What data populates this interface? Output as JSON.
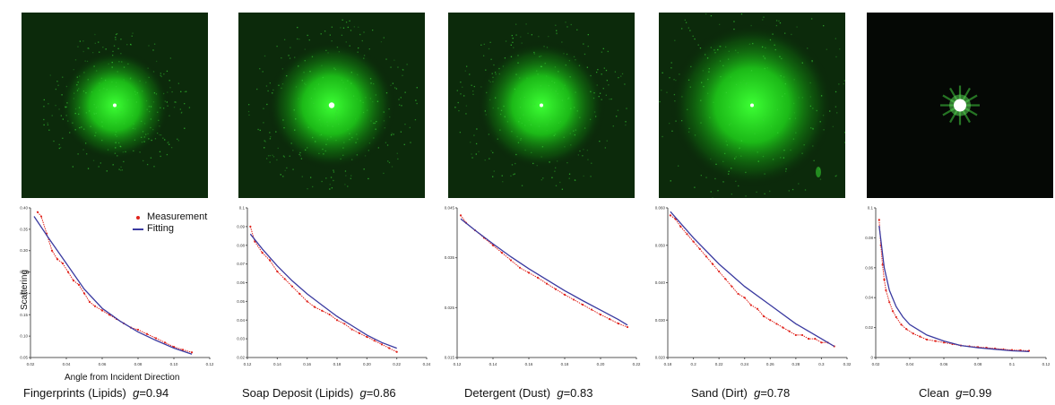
{
  "panels": [
    {
      "id": "fingerprints",
      "caption": "Fingerprints (Lipids)",
      "g_symbol": "g",
      "g_value": "=0.94",
      "photo": {
        "glow": "medium",
        "core": "small"
      },
      "chart_data": {
        "type": "scatter",
        "xlabel": "Angle from Incident Direction",
        "ylabel": "Scattering",
        "xlim": [
          0.02,
          0.12
        ],
        "ylim": [
          0.05,
          0.4
        ],
        "x_ticks": [
          "0.02",
          "0.04",
          "0.06",
          "0.08",
          "0.10",
          "0.12"
        ],
        "y_ticks": [
          "0.05",
          "0.10",
          "0.15",
          "0.20",
          "0.25",
          "0.30",
          "0.35",
          "0.40"
        ],
        "series": [
          {
            "name": "Measurement",
            "kind": "points",
            "x": [
              0.024,
              0.026,
              0.029,
              0.032,
              0.035,
              0.038,
              0.041,
              0.044,
              0.047,
              0.05,
              0.053,
              0.056,
              0.06,
              0.064,
              0.068,
              0.072,
              0.076,
              0.08,
              0.085,
              0.09,
              0.095,
              0.1,
              0.105,
              0.11
            ],
            "y": [
              0.39,
              0.38,
              0.34,
              0.3,
              0.28,
              0.27,
              0.25,
              0.23,
              0.22,
              0.2,
              0.18,
              0.17,
              0.16,
              0.15,
              0.14,
              0.13,
              0.12,
              0.115,
              0.105,
              0.095,
              0.085,
              0.075,
              0.068,
              0.062
            ]
          },
          {
            "name": "Fitting",
            "kind": "line",
            "x": [
              0.022,
              0.03,
              0.04,
              0.05,
              0.06,
              0.07,
              0.08,
              0.09,
              0.1,
              0.11
            ],
            "y": [
              0.38,
              0.33,
              0.27,
              0.21,
              0.165,
              0.135,
              0.11,
              0.09,
              0.072,
              0.058
            ]
          }
        ]
      }
    },
    {
      "id": "soap",
      "caption": "Soap Deposit (Lipids)",
      "g_symbol": "g",
      "g_value": "=0.86",
      "photo": {
        "glow": "large",
        "core": "small"
      },
      "chart_data": {
        "type": "scatter",
        "xlim": [
          0.12,
          0.24
        ],
        "ylim": [
          0.02,
          0.1
        ],
        "x_ticks": [
          "0.12",
          "0.14",
          "0.16",
          "0.18",
          "0.20",
          "0.22",
          "0.24"
        ],
        "y_ticks": [
          "0.02",
          "0.03",
          "0.04",
          "0.05",
          "0.06",
          "0.07",
          "0.08",
          "0.09",
          "0.1"
        ],
        "series": [
          {
            "name": "Measurement",
            "kind": "points",
            "x": [
              0.122,
              0.125,
              0.13,
              0.135,
              0.14,
              0.145,
              0.15,
              0.155,
              0.16,
              0.165,
              0.17,
              0.175,
              0.18,
              0.185,
              0.19,
              0.195,
              0.2,
              0.205,
              0.21,
              0.215,
              0.22
            ],
            "y": [
              0.09,
              0.082,
              0.076,
              0.072,
              0.066,
              0.062,
              0.058,
              0.054,
              0.05,
              0.047,
              0.045,
              0.043,
              0.04,
              0.038,
              0.035,
              0.033,
              0.031,
              0.029,
              0.027,
              0.025,
              0.023
            ]
          },
          {
            "name": "Fitting",
            "kind": "line",
            "x": [
              0.122,
              0.13,
              0.14,
              0.15,
              0.16,
              0.17,
              0.18,
              0.19,
              0.2,
              0.21,
              0.22
            ],
            "y": [
              0.086,
              0.078,
              0.069,
              0.061,
              0.054,
              0.048,
              0.042,
              0.037,
              0.032,
              0.028,
              0.025
            ]
          }
        ]
      }
    },
    {
      "id": "detergent",
      "caption": "Detergent (Dust)",
      "g_symbol": "g",
      "g_value": "=0.83",
      "photo": {
        "glow": "large",
        "core": "small"
      },
      "chart_data": {
        "type": "scatter",
        "xlim": [
          0.12,
          0.22
        ],
        "ylim": [
          0.015,
          0.045
        ],
        "x_ticks": [
          "0.12",
          "0.14",
          "0.16",
          "0.18",
          "0.20",
          "0.22"
        ],
        "y_ticks": [
          "0.015",
          "0.025",
          "0.035",
          "0.045"
        ],
        "series": [
          {
            "name": "Measurement",
            "kind": "points",
            "x": [
              0.122,
              0.125,
              0.13,
              0.135,
              0.14,
              0.145,
              0.15,
              0.155,
              0.16,
              0.165,
              0.17,
              0.175,
              0.18,
              0.185,
              0.19,
              0.195,
              0.2,
              0.205,
              0.21,
              0.215
            ],
            "y": [
              0.0435,
              0.042,
              0.0405,
              0.039,
              0.0375,
              0.036,
              0.0345,
              0.033,
              0.032,
              0.031,
              0.0298,
              0.0287,
              0.0276,
              0.0266,
              0.0256,
              0.0246,
              0.0236,
              0.0227,
              0.0218,
              0.0211
            ]
          },
          {
            "name": "Fitting",
            "kind": "line",
            "x": [
              0.122,
              0.13,
              0.14,
              0.15,
              0.16,
              0.17,
              0.18,
              0.19,
              0.2,
              0.21,
              0.215
            ],
            "y": [
              0.0428,
              0.0405,
              0.0378,
              0.0352,
              0.0328,
              0.0306,
              0.0284,
              0.0264,
              0.0245,
              0.0226,
              0.0215
            ]
          }
        ]
      }
    },
    {
      "id": "sand",
      "caption": "Sand (Dirt)",
      "g_symbol": "g",
      "g_value": "=0.78",
      "photo": {
        "glow": "xlarge",
        "core": "small"
      },
      "chart_data": {
        "type": "scatter",
        "xlim": [
          0.18,
          0.32
        ],
        "ylim": [
          0.02,
          0.06
        ],
        "x_ticks": [
          "0.18",
          "0.2",
          "0.22",
          "0.24",
          "0.26",
          "0.28",
          "0.3",
          "0.32"
        ],
        "y_ticks": [
          "0.020",
          "0.030",
          "0.040",
          "0.050",
          "0.060"
        ],
        "series": [
          {
            "name": "Measurement",
            "kind": "points",
            "x": [
              0.182,
              0.186,
              0.19,
              0.195,
              0.2,
              0.205,
              0.21,
              0.215,
              0.22,
              0.225,
              0.23,
              0.235,
              0.24,
              0.245,
              0.25,
              0.255,
              0.26,
              0.265,
              0.27,
              0.275,
              0.28,
              0.285,
              0.29,
              0.295,
              0.3,
              0.305,
              0.31
            ],
            "y": [
              0.058,
              0.057,
              0.055,
              0.053,
              0.051,
              0.049,
              0.047,
              0.045,
              0.043,
              0.041,
              0.039,
              0.037,
              0.036,
              0.034,
              0.033,
              0.031,
              0.03,
              0.029,
              0.028,
              0.027,
              0.026,
              0.026,
              0.025,
              0.025,
              0.024,
              0.024,
              0.023
            ]
          },
          {
            "name": "Fitting",
            "kind": "line",
            "x": [
              0.182,
              0.2,
              0.22,
              0.24,
              0.26,
              0.28,
              0.3,
              0.31
            ],
            "y": [
              0.059,
              0.052,
              0.045,
              0.039,
              0.034,
              0.029,
              0.025,
              0.023
            ]
          }
        ]
      }
    },
    {
      "id": "clean",
      "caption": "Clean",
      "g_symbol": "g",
      "g_value": "=0.99",
      "photo": {
        "glow": "none",
        "core": "star"
      },
      "chart_data": {
        "type": "scatter",
        "xlim": [
          0.02,
          0.12
        ],
        "ylim": [
          0,
          0.1
        ],
        "x_ticks": [
          "0.02",
          "0.04",
          "0.06",
          "0.08",
          "0.1",
          "0.12"
        ],
        "y_ticks": [
          "0",
          "0.02",
          "0.04",
          "0.06",
          "0.08",
          "0.1"
        ],
        "series": [
          {
            "name": "Measurement",
            "kind": "points",
            "x": [
              0.022,
              0.023,
              0.024,
              0.025,
              0.026,
              0.028,
              0.03,
              0.032,
              0.035,
              0.038,
              0.042,
              0.046,
              0.05,
              0.055,
              0.06,
              0.065,
              0.07,
              0.075,
              0.08,
              0.085,
              0.09,
              0.095,
              0.1,
              0.105,
              0.11
            ],
            "y": [
              0.092,
              0.075,
              0.062,
              0.052,
              0.045,
              0.037,
              0.031,
              0.027,
              0.022,
              0.019,
              0.016,
              0.014,
              0.012,
              0.011,
              0.01,
              0.009,
              0.008,
              0.0075,
              0.007,
              0.0065,
              0.006,
              0.0055,
              0.005,
              0.0048,
              0.0045
            ]
          },
          {
            "name": "Fitting",
            "kind": "line",
            "x": [
              0.022,
              0.025,
              0.028,
              0.032,
              0.036,
              0.04,
              0.05,
              0.06,
              0.07,
              0.08,
              0.09,
              0.1,
              0.11
            ],
            "y": [
              0.088,
              0.06,
              0.045,
              0.034,
              0.027,
              0.022,
              0.015,
              0.011,
              0.008,
              0.0065,
              0.0055,
              0.0045,
              0.004
            ]
          }
        ]
      }
    }
  ],
  "legend": {
    "measurement": "Measurement",
    "fitting": "Fitting"
  },
  "colors": {
    "measurement": "#e0221b",
    "fitting": "#3a3aa0",
    "glow": "#1fd31a",
    "background": "#0a140a"
  }
}
